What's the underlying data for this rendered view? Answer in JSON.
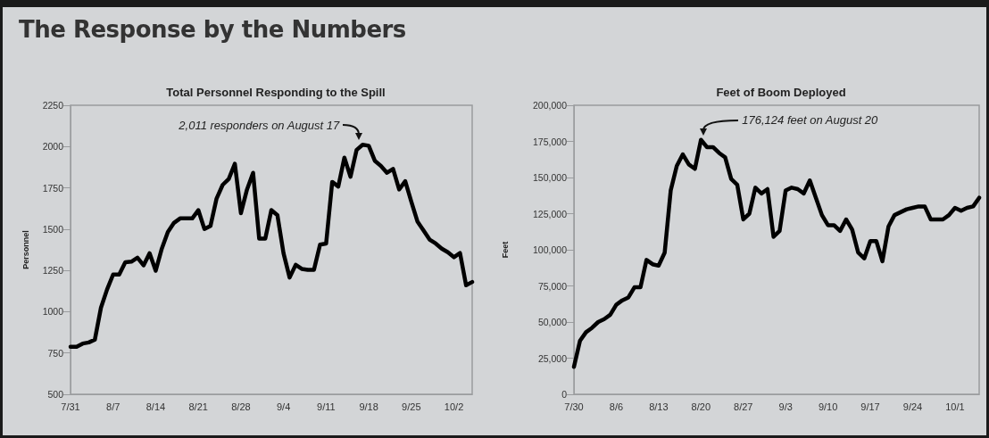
{
  "chart_data": [
    {
      "type": "other",
      "title": "The Response by the Numbers"
    },
    {
      "type": "line",
      "title": "Total Personnel Responding to the Spill",
      "ylabel": "Personnel",
      "marker": "none",
      "line_style": "solid",
      "grid": false,
      "annotations": [
        "2,011 responders on August 17"
      ],
      "x": [
        "--07-31",
        "--08-01",
        "--08-02",
        "--08-03",
        "--08-04",
        "--08-05",
        "--08-06",
        "--08-07",
        "--08-08",
        "--08-09",
        "--08-10",
        "--08-11",
        "--08-12",
        "--08-13",
        "--08-14",
        "--08-15",
        "--08-16",
        "--08-17",
        "--08-18",
        "--08-19",
        "--08-20",
        "--08-21",
        "--08-22",
        "--08-23",
        "--08-24",
        "--08-25",
        "--08-26",
        "--08-27",
        "--08-28",
        "--08-29",
        "--08-30",
        "--08-31",
        "--09-01",
        "--09-02",
        "--09-03",
        "--09-04",
        "--09-05",
        "--09-06",
        "--09-07",
        "--09-08",
        "--09-09",
        "--09-10",
        "--09-11",
        "--09-12",
        "--09-13",
        "--09-14",
        "--09-15",
        "--09-16",
        "--09-17",
        "--09-18",
        "--09-19",
        "--09-20",
        "--09-21",
        "--09-22",
        "--09-23",
        "--09-24",
        "--09-25",
        "--09-26",
        "--09-27",
        "--09-28",
        "--09-29",
        "--09-30",
        "--10-01",
        "--10-02",
        "--10-03",
        "--10-04",
        "--10-05"
      ],
      "series": [
        {
          "color": "#000000",
          "values": [
            788,
            788,
            807,
            814,
            831,
            1024,
            1134,
            1225,
            1225,
            1299,
            1303,
            1327,
            1281,
            1354,
            1248,
            1382,
            1483,
            1538,
            1565,
            1565,
            1565,
            1615,
            1501,
            1520,
            1685,
            1768,
            1804,
            1896,
            1597,
            1740,
            1841,
            1442,
            1442,
            1615,
            1584,
            1354,
            1207,
            1284,
            1259,
            1253,
            1253,
            1406,
            1413,
            1786,
            1758,
            1933,
            1817,
            1979,
            2011,
            2005,
            1914,
            1883,
            1841,
            1865,
            1740,
            1790,
            1666,
            1547,
            1492,
            1437,
            1413,
            1382,
            1360,
            1330,
            1355,
            1160,
            1180
          ]
        }
      ],
      "xlim": [
        "--07-31",
        "--10-05"
      ],
      "xticks": [
        {
          "value": "--07-31",
          "label": "7/31"
        },
        {
          "value": "--08-07",
          "label": "8/7"
        },
        {
          "value": "--08-14",
          "label": "8/14"
        },
        {
          "value": "--08-21",
          "label": "8/21"
        },
        {
          "value": "--08-28",
          "label": "8/28"
        },
        {
          "value": "--09-04",
          "label": "9/4"
        },
        {
          "value": "--09-11",
          "label": "9/11"
        },
        {
          "value": "--09-18",
          "label": "9/18"
        },
        {
          "value": "--09-25",
          "label": "9/25"
        },
        {
          "value": "--10-02",
          "label": "10/2"
        }
      ],
      "ylim": [
        500,
        2250
      ],
      "yticks": [
        500,
        750,
        1000,
        1250,
        1500,
        1750,
        2000,
        2250
      ]
    },
    {
      "type": "line",
      "title": "Feet of Boom Deployed",
      "ylabel": "Feet",
      "marker": "none",
      "line_style": "solid",
      "grid": false,
      "annotations": [
        "176,124 feet on August 20"
      ],
      "x": [
        "--07-30",
        "--07-31",
        "--08-01",
        "--08-02",
        "--08-03",
        "--08-04",
        "--08-05",
        "--08-06",
        "--08-07",
        "--08-08",
        "--08-09",
        "--08-10",
        "--08-11",
        "--08-12",
        "--08-13",
        "--08-14",
        "--08-15",
        "--08-16",
        "--08-17",
        "--08-18",
        "--08-19",
        "--08-20",
        "--08-21",
        "--08-22",
        "--08-23",
        "--08-24",
        "--08-25",
        "--08-26",
        "--08-27",
        "--08-28",
        "--08-29",
        "--08-30",
        "--08-31",
        "--09-01",
        "--09-02",
        "--09-03",
        "--09-04",
        "--09-05",
        "--09-06",
        "--09-07",
        "--09-08",
        "--09-09",
        "--09-10",
        "--09-11",
        "--09-12",
        "--09-13",
        "--09-14",
        "--09-15",
        "--09-16",
        "--09-17",
        "--09-18",
        "--09-19",
        "--09-20",
        "--09-21",
        "--09-22",
        "--09-23",
        "--09-24",
        "--09-25",
        "--09-26",
        "--09-27",
        "--09-28",
        "--09-29",
        "--09-30",
        "--10-01",
        "--10-02",
        "--10-03",
        "--10-04",
        "--10-05"
      ],
      "series": [
        {
          "color": "#000000",
          "values": [
            19000,
            37000,
            43000,
            46000,
            50000,
            52000,
            55000,
            62000,
            65000,
            67000,
            74000,
            74000,
            93000,
            90000,
            89000,
            98000,
            141000,
            158000,
            166000,
            159000,
            156000,
            176124,
            171000,
            171000,
            167000,
            164000,
            149000,
            145000,
            121000,
            125000,
            143000,
            139000,
            142000,
            109000,
            113000,
            141000,
            143000,
            142000,
            139000,
            148000,
            136000,
            124000,
            117000,
            117000,
            113000,
            121000,
            114000,
            98000,
            94000,
            106000,
            106000,
            92000,
            116000,
            124000,
            126000,
            128000,
            129000,
            130000,
            130000,
            121000,
            121000,
            121000,
            124000,
            129000,
            127000,
            129000,
            130000,
            136000
          ]
        }
      ],
      "xlim": [
        "--07-30",
        "--10-05"
      ],
      "xticks": [
        {
          "value": "--07-30",
          "label": "7/30"
        },
        {
          "value": "--08-06",
          "label": "8/6"
        },
        {
          "value": "--08-13",
          "label": "8/13"
        },
        {
          "value": "--08-20",
          "label": "8/20"
        },
        {
          "value": "--08-27",
          "label": "8/27"
        },
        {
          "value": "--09-03",
          "label": "9/3"
        },
        {
          "value": "--09-10",
          "label": "9/10"
        },
        {
          "value": "--09-17",
          "label": "9/17"
        },
        {
          "value": "--09-24",
          "label": "9/24"
        },
        {
          "value": "--10-01",
          "label": "10/1"
        }
      ],
      "ylim": [
        0,
        200000
      ],
      "yticks": [
        0,
        {
          "value": 25000,
          "label": "25,000"
        },
        {
          "value": 50000,
          "label": "50,000"
        },
        {
          "value": 75000,
          "label": "75,000"
        },
        {
          "value": 100000,
          "label": "100,000"
        },
        {
          "value": 125000,
          "label": "125,000"
        },
        {
          "value": 150000,
          "label": "150,000"
        },
        {
          "value": 175000,
          "label": "175,000"
        },
        {
          "value": 200000,
          "label": "200,000"
        }
      ]
    }
  ]
}
